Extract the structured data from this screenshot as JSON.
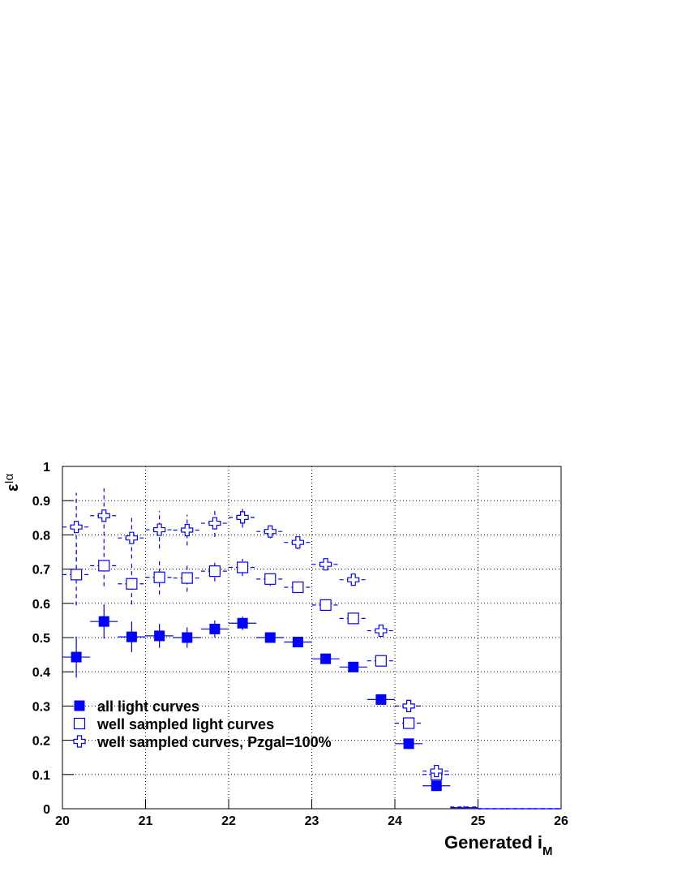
{
  "chart_data": {
    "type": "errorbar",
    "xlabel": "Generated i",
    "xlabel_sub": "M",
    "ylabel": "ε",
    "ylabel_sub": "Iα",
    "x": [
      20.167,
      20.5,
      20.833,
      21.167,
      21.5,
      21.833,
      22.167,
      22.5,
      22.833,
      23.167,
      23.5,
      23.833,
      24.167,
      24.5,
      24.833,
      25.167,
      25.5,
      25.833
    ],
    "xlim": [
      20,
      26
    ],
    "xticks": [
      20,
      21,
      22,
      23,
      24,
      25,
      26
    ],
    "ylim": [
      0,
      1
    ],
    "yticks": [
      0,
      0.1,
      0.2,
      0.3,
      0.4,
      0.5,
      0.6,
      0.7,
      0.8,
      0.9,
      1
    ],
    "grid": true,
    "legend": "lower left",
    "series": [
      {
        "name": "all light curves",
        "color": "#0000ff",
        "marker": "filled-square",
        "line_style": "solid",
        "values": [
          0.443,
          0.547,
          0.502,
          0.505,
          0.5,
          0.525,
          0.542,
          0.5,
          0.487,
          0.438,
          0.414,
          0.319,
          0.19,
          0.067,
          0.003,
          0,
          0,
          0
        ],
        "errors": [
          0.06,
          0.05,
          0.045,
          0.035,
          0.03,
          0.025,
          0.02,
          0.015,
          0.01,
          0.01,
          0.01,
          0.01,
          0.01,
          0.01,
          0.003,
          0,
          0,
          0
        ]
      },
      {
        "name": "well sampled light curves",
        "color": "#0000ff",
        "marker": "open-square",
        "line_style": "dashed",
        "values": [
          0.684,
          0.71,
          0.657,
          0.676,
          0.674,
          0.694,
          0.705,
          0.671,
          0.647,
          0.595,
          0.556,
          0.432,
          0.25,
          0.1,
          0.004,
          0,
          0,
          0
        ],
        "errors": [
          0.09,
          0.06,
          0.06,
          0.05,
          0.04,
          0.03,
          0.025,
          0.02,
          0.015,
          0.01,
          0.01,
          0.01,
          0.01,
          0.01,
          0.003,
          0,
          0,
          0
        ]
      },
      {
        "name": "well sampled curves, Pzgal=100%",
        "color": "#0000ff",
        "marker": "open-cross",
        "line_style": "dashed",
        "values": [
          0.823,
          0.856,
          0.791,
          0.815,
          0.814,
          0.834,
          0.851,
          0.81,
          0.778,
          0.714,
          0.669,
          0.52,
          0.3,
          0.11,
          0.005,
          0,
          0,
          0
        ],
        "errors": [
          0.1,
          0.08,
          0.06,
          0.055,
          0.045,
          0.04,
          0.03,
          0.02,
          0.02,
          0.015,
          0.01,
          0.01,
          0.01,
          0.01,
          0.003,
          0,
          0,
          0
        ]
      }
    ]
  }
}
